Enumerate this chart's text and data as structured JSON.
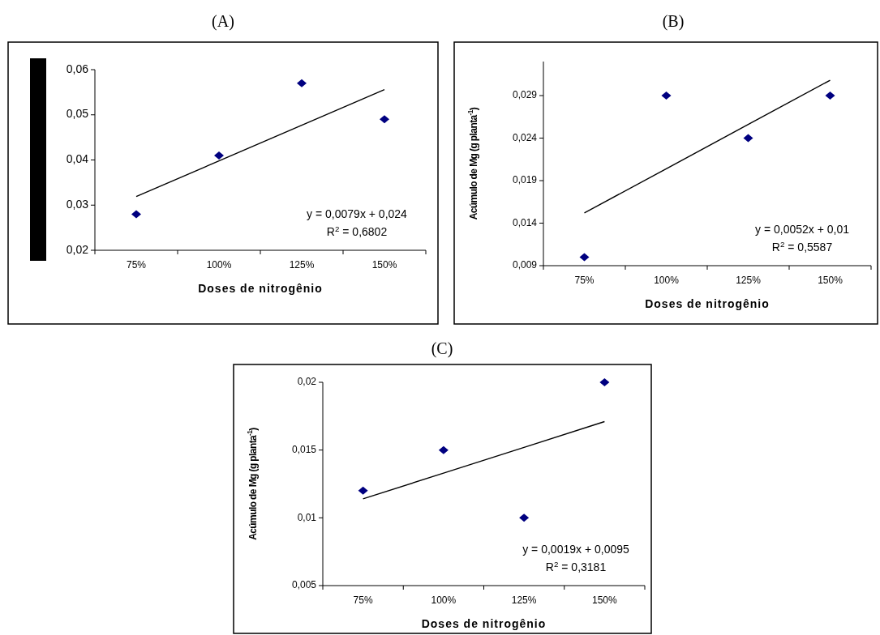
{
  "chart_data": [
    {
      "type": "scatter",
      "title": "(A)",
      "xlabel": "Doses de nitrogênio",
      "categories": [
        "75%",
        "100%",
        "125%",
        "150%"
      ],
      "ylim": [
        0.02,
        0.06
      ],
      "yticks": [
        {
          "value": 0.02,
          "label": "0,02"
        },
        {
          "value": 0.03,
          "label": "0,03"
        },
        {
          "value": 0.04,
          "label": "0,04"
        },
        {
          "value": 0.05,
          "label": "0,05"
        },
        {
          "value": 0.06,
          "label": "0,06"
        }
      ],
      "grid": false,
      "series": [
        {
          "type": "scatter",
          "color": "#000080",
          "marker": "diamond",
          "values": [
            0.028,
            0.041,
            0.057,
            0.049
          ]
        },
        {
          "type": "line",
          "color": "#000000",
          "line_style": "solid",
          "x": [
            "75%",
            "100%",
            "125%",
            "150%"
          ],
          "values": [
            0.0319,
            0.0398,
            0.0477,
            0.0556
          ]
        }
      ],
      "annotations": [
        "y = 0,0079x + 0,024",
        "R$^{2}$ = 0,6802"
      ]
    },
    {
      "type": "scatter",
      "title": "(B)",
      "xlabel": "Doses de nitrogênio",
      "ylabel": "Acúmulo de Mg (g planta$^{-1}$)",
      "categories": [
        "75%",
        "100%",
        "125%",
        "150%"
      ],
      "ylim": [
        0.009,
        0.033
      ],
      "yticks": [
        {
          "value": 0.009,
          "label": "0,009"
        },
        {
          "value": 0.014,
          "label": "0,014"
        },
        {
          "value": 0.019,
          "label": "0,019"
        },
        {
          "value": 0.024,
          "label": "0,024"
        },
        {
          "value": 0.029,
          "label": "0,029"
        }
      ],
      "grid": false,
      "series": [
        {
          "type": "scatter",
          "color": "#000080",
          "marker": "diamond",
          "values": [
            0.01,
            0.029,
            0.024,
            0.029
          ]
        },
        {
          "type": "line",
          "color": "#000000",
          "line_style": "solid",
          "x": [
            "75%",
            "100%",
            "125%",
            "150%"
          ],
          "values": [
            0.0152,
            0.0204,
            0.0256,
            0.0308
          ]
        }
      ],
      "annotations": [
        "y = 0,0052x + 0,01",
        "R$^{2}$ = 0,5587"
      ]
    },
    {
      "type": "scatter",
      "title": "(C)",
      "xlabel": "Doses de nitrogênio",
      "ylabel": "Acúmulo de Mg (g planta$^{-1}$)",
      "categories": [
        "75%",
        "100%",
        "125%",
        "150%"
      ],
      "ylim": [
        0.005,
        0.02
      ],
      "yticks": [
        {
          "value": 0.005,
          "label": "0,005"
        },
        {
          "value": 0.01,
          "label": "0,01"
        },
        {
          "value": 0.015,
          "label": "0,015"
        },
        {
          "value": 0.02,
          "label": "0,02"
        }
      ],
      "grid": false,
      "series": [
        {
          "type": "scatter",
          "color": "#000080",
          "marker": "diamond",
          "values": [
            0.012,
            0.015,
            0.01,
            0.02
          ]
        },
        {
          "type": "line",
          "color": "#000000",
          "line_style": "solid",
          "x": [
            "75%",
            "100%",
            "125%",
            "150%"
          ],
          "values": [
            0.0114,
            0.0133,
            0.0152,
            0.0171
          ]
        }
      ],
      "annotations": [
        "y = 0,0019x + 0,0095",
        "R$^{2}$ = 0,3181"
      ]
    }
  ]
}
